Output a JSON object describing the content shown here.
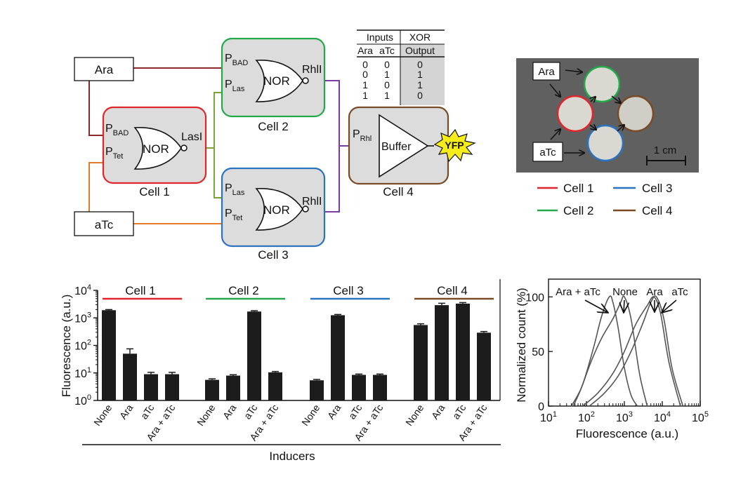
{
  "circuit": {
    "inputs": {
      "ara": "Ara",
      "atc": "aTc"
    },
    "cells": {
      "cell1": {
        "label": "Cell 1",
        "gate": "NOR",
        "in1": "P",
        "in1_sub": "BAD",
        "in2": "P",
        "in2_sub": "Tet",
        "out": "LasI"
      },
      "cell2": {
        "label": "Cell 2",
        "gate": "NOR",
        "in1": "P",
        "in1_sub": "BAD",
        "in2": "P",
        "in2_sub": "Las",
        "out": "RhlI"
      },
      "cell3": {
        "label": "Cell 3",
        "gate": "NOR",
        "in1": "P",
        "in1_sub": "Las",
        "in2": "P",
        "in2_sub": "Tet",
        "out": "RhlI"
      },
      "cell4": {
        "label": "Cell 4",
        "gate": "Buffer",
        "in1": "P",
        "in1_sub": "Rhl",
        "out": "YFP"
      }
    },
    "colors": {
      "cell1": "#e0262b",
      "cell2": "#22aa4a",
      "cell3": "#2a73c0",
      "cell4": "#7a4a25",
      "ara_wire": "#8b2a2a",
      "atc_wire": "#e47b2a",
      "las_wire": "#7aa33a",
      "rhl_wire": "#7a3aa8",
      "yfp": "#f5ec1a"
    }
  },
  "truth_table": {
    "group_headers": [
      "Inputs",
      "XOR"
    ],
    "col_headers": [
      "Ara",
      "aTc",
      "Output"
    ],
    "rows": [
      [
        "0",
        "0",
        "0"
      ],
      [
        "0",
        "1",
        "1"
      ],
      [
        "1",
        "0",
        "1"
      ],
      [
        "1",
        "1",
        "0"
      ]
    ]
  },
  "photo": {
    "labels": {
      "ara": "Ara",
      "atc": "aTc"
    },
    "scale_label": "1 cm",
    "legend": [
      {
        "name": "Cell 1",
        "color": "#e0262b"
      },
      {
        "name": "Cell 3",
        "color": "#2a73c0"
      },
      {
        "name": "Cell 2",
        "color": "#22aa4a"
      },
      {
        "name": "Cell 4",
        "color": "#7a4a25"
      }
    ]
  },
  "chart_data": [
    {
      "type": "bar",
      "ylabel": "Fluorescence (a.u.)",
      "xlabel": "Inducers",
      "yscale": "log",
      "ylim": [
        1,
        10000
      ],
      "ytick_labels": [
        {
          "base": "10",
          "exp": "0"
        },
        {
          "base": "10",
          "exp": "1"
        },
        {
          "base": "10",
          "exp": "2"
        },
        {
          "base": "10",
          "exp": "3"
        },
        {
          "base": "10",
          "exp": "4"
        }
      ],
      "categories": [
        "None",
        "Ara",
        "aTc",
        "Ara + aTc"
      ],
      "groups": [
        {
          "name": "Cell 1",
          "color": "#e0262b",
          "values": [
            1900,
            50,
            9,
            9
          ],
          "errors": [
            100,
            25,
            1.5,
            1.5
          ]
        },
        {
          "name": "Cell 2",
          "color": "#22aa4a",
          "values": [
            5.6,
            8,
            1700,
            10.5
          ],
          "errors": [
            0.5,
            0.6,
            120,
            0.8
          ]
        },
        {
          "name": "Cell 3",
          "color": "#2a73c0",
          "values": [
            5.4,
            1250,
            8.5,
            8.5
          ],
          "errors": [
            0.4,
            80,
            0.6,
            0.6
          ]
        },
        {
          "name": "Cell 4",
          "color": "#7a4a25",
          "values": [
            550,
            2900,
            3300,
            290
          ],
          "errors": [
            60,
            500,
            300,
            30
          ]
        }
      ]
    },
    {
      "type": "line",
      "ylabel": "Normalized count (%)",
      "xlabel": "Fluorescence (a.u.)",
      "xscale": "log",
      "xlim": [
        10,
        100000
      ],
      "ylim": [
        0,
        115
      ],
      "xtick_labels": [
        {
          "base": "10",
          "exp": "1"
        },
        {
          "base": "10",
          "exp": "2"
        },
        {
          "base": "10",
          "exp": "3"
        },
        {
          "base": "10",
          "exp": "4"
        },
        {
          "base": "10",
          "exp": "5"
        }
      ],
      "ytick_labels": [
        "0",
        "50",
        "100"
      ],
      "series": [
        {
          "name": "Ara + aTc",
          "x": [
            45,
            80,
            150,
            250,
            400,
            500,
            700,
            1000,
            1500,
            2200
          ],
          "y": [
            0,
            20,
            52,
            82,
            100,
            95,
            70,
            35,
            10,
            0
          ]
        },
        {
          "name": "None",
          "x": [
            40,
            70,
            130,
            250,
            500,
            800,
            1000,
            1500,
            2500,
            4000
          ],
          "y": [
            0,
            15,
            40,
            62,
            80,
            95,
            100,
            80,
            30,
            0
          ]
        },
        {
          "name": "Ara",
          "x": [
            80,
            200,
            500,
            1000,
            2000,
            4000,
            6000,
            9000,
            15000,
            30000
          ],
          "y": [
            0,
            12,
            30,
            50,
            75,
            92,
            100,
            85,
            40,
            0
          ]
        },
        {
          "name": "aTc",
          "x": [
            120,
            300,
            700,
            1500,
            3000,
            5000,
            7000,
            11000,
            18000,
            35000
          ],
          "y": [
            0,
            12,
            28,
            50,
            75,
            95,
            100,
            80,
            35,
            0
          ]
        }
      ]
    }
  ]
}
